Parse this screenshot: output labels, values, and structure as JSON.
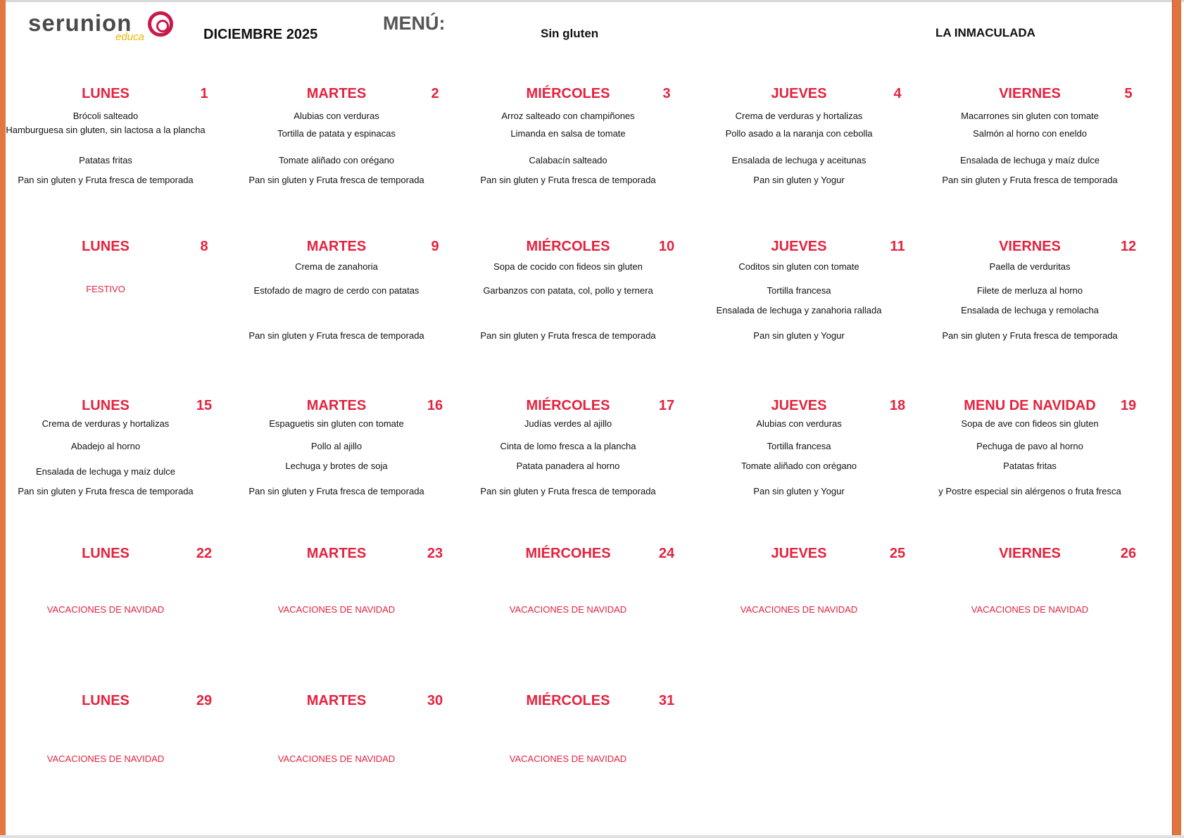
{
  "header": {
    "logo_text": "serunion",
    "logo_sub": "educa",
    "month": "DICIEMBRE 2025",
    "menu_label": "MENÚ:",
    "diet": "Sin gluten",
    "school": "LA INMACULADA"
  },
  "colors": {
    "accent": "#e4223e",
    "border": "#e2773f"
  },
  "weeks": [
    {
      "days": [
        {
          "name": "LUNES",
          "num": "1",
          "items": [
            "Brócoli salteado",
            "Hamburguesa sin gluten, sin lactosa a la plancha",
            "Patatas fritas",
            "Pan sin gluten y Fruta fresca de temporada"
          ]
        },
        {
          "name": "MARTES",
          "num": "2",
          "items": [
            "Alubias con verduras",
            "Tortilla de patata y espinacas",
            "Tomate aliñado con orégano",
            "Pan sin gluten y Fruta fresca de temporada"
          ]
        },
        {
          "name": "MIÉRCOLES",
          "num": "3",
          "items": [
            "Arroz salteado con champiñones",
            "Limanda en salsa de tomate",
            "Calabacín salteado",
            "Pan sin gluten y Fruta fresca de temporada"
          ]
        },
        {
          "name": "JUEVES",
          "num": "4",
          "items": [
            "Crema de verduras y hortalizas",
            "Pollo asado a la naranja con cebolla",
            "Ensalada de lechuga y aceitunas",
            "Pan sin gluten y Yogur"
          ]
        },
        {
          "name": "VIERNES",
          "num": "5",
          "items": [
            "Macarrones sin gluten con tomate",
            "Salmón al horno con eneldo",
            "Ensalada de lechuga y maíz dulce",
            "Pan sin gluten y Fruta fresca de temporada"
          ]
        }
      ]
    },
    {
      "days": [
        {
          "name": "LUNES",
          "num": "8",
          "note": "FESTIVO"
        },
        {
          "name": "MARTES",
          "num": "9",
          "items": [
            "Crema de zanahoria",
            "Estofado de magro de cerdo con patatas",
            "Pan sin gluten y Fruta fresca de temporada"
          ]
        },
        {
          "name": "MIÉRCOLES",
          "num": "10",
          "items": [
            "Sopa de cocido con fideos sin gluten",
            "Garbanzos con patata, col, pollo y ternera",
            "Pan sin gluten y Fruta fresca de temporada"
          ]
        },
        {
          "name": "JUEVES",
          "num": "11",
          "items": [
            "Coditos sin gluten con tomate",
            "Tortilla francesa",
            "Ensalada de lechuga y zanahoria rallada",
            "Pan sin gluten y Yogur"
          ]
        },
        {
          "name": "VIERNES",
          "num": "12",
          "items": [
            "Paella de verduritas",
            "Filete de merluza al horno",
            "Ensalada de lechuga y remolacha",
            "Pan sin gluten y Fruta fresca de temporada"
          ]
        }
      ]
    },
    {
      "days": [
        {
          "name": "LUNES",
          "num": "15",
          "items": [
            "Crema de verduras y hortalizas",
            "Abadejo al horno",
            "Ensalada de lechuga y maíz dulce",
            "Pan sin gluten y Fruta fresca de temporada"
          ]
        },
        {
          "name": "MARTES",
          "num": "16",
          "items": [
            "Espaguetis sin gluten con tomate",
            "Pollo al ajillo",
            "Lechuga y brotes de soja",
            "Pan sin gluten y Fruta fresca de temporada"
          ]
        },
        {
          "name": "MIÉRCOLES",
          "num": "17",
          "items": [
            "Judías verdes al ajillo",
            "Cinta de lomo fresca a la plancha",
            "Patata panadera al horno",
            "Pan sin gluten y Fruta fresca de temporada"
          ]
        },
        {
          "name": "JUEVES",
          "num": "18",
          "items": [
            "Alubias con verduras",
            "Tortilla francesa",
            "Tomate aliñado con orégano",
            "Pan sin gluten y Yogur"
          ]
        },
        {
          "name": "MENU DE NAVIDAD",
          "num": "19",
          "items": [
            "Sopa de ave con fideos sin gluten",
            "Pechuga de pavo al horno",
            "Patatas fritas",
            "y Postre especial  sin alérgenos o fruta fresca"
          ]
        }
      ]
    },
    {
      "days": [
        {
          "name": "LUNES",
          "num": "22",
          "note": "VACACIONES DE NAVIDAD"
        },
        {
          "name": "MARTES",
          "num": "23",
          "note": "VACACIONES DE NAVIDAD"
        },
        {
          "name": "MIÉRCOHES",
          "num": "24",
          "note": "VACACIONES DE NAVIDAD"
        },
        {
          "name": "JUEVES",
          "num": "25",
          "note": "VACACIONES DE NAVIDAD"
        },
        {
          "name": "VIERNES",
          "num": "26",
          "note": "VACACIONES DE NAVIDAD"
        }
      ]
    },
    {
      "days": [
        {
          "name": "LUNES",
          "num": "29",
          "note": "VACACIONES DE NAVIDAD"
        },
        {
          "name": "MARTES",
          "num": "30",
          "note": "VACACIONES DE NAVIDAD"
        },
        {
          "name": "MIÉRCOLES",
          "num": "31",
          "note": "VACACIONES DE NAVIDAD"
        }
      ]
    }
  ]
}
